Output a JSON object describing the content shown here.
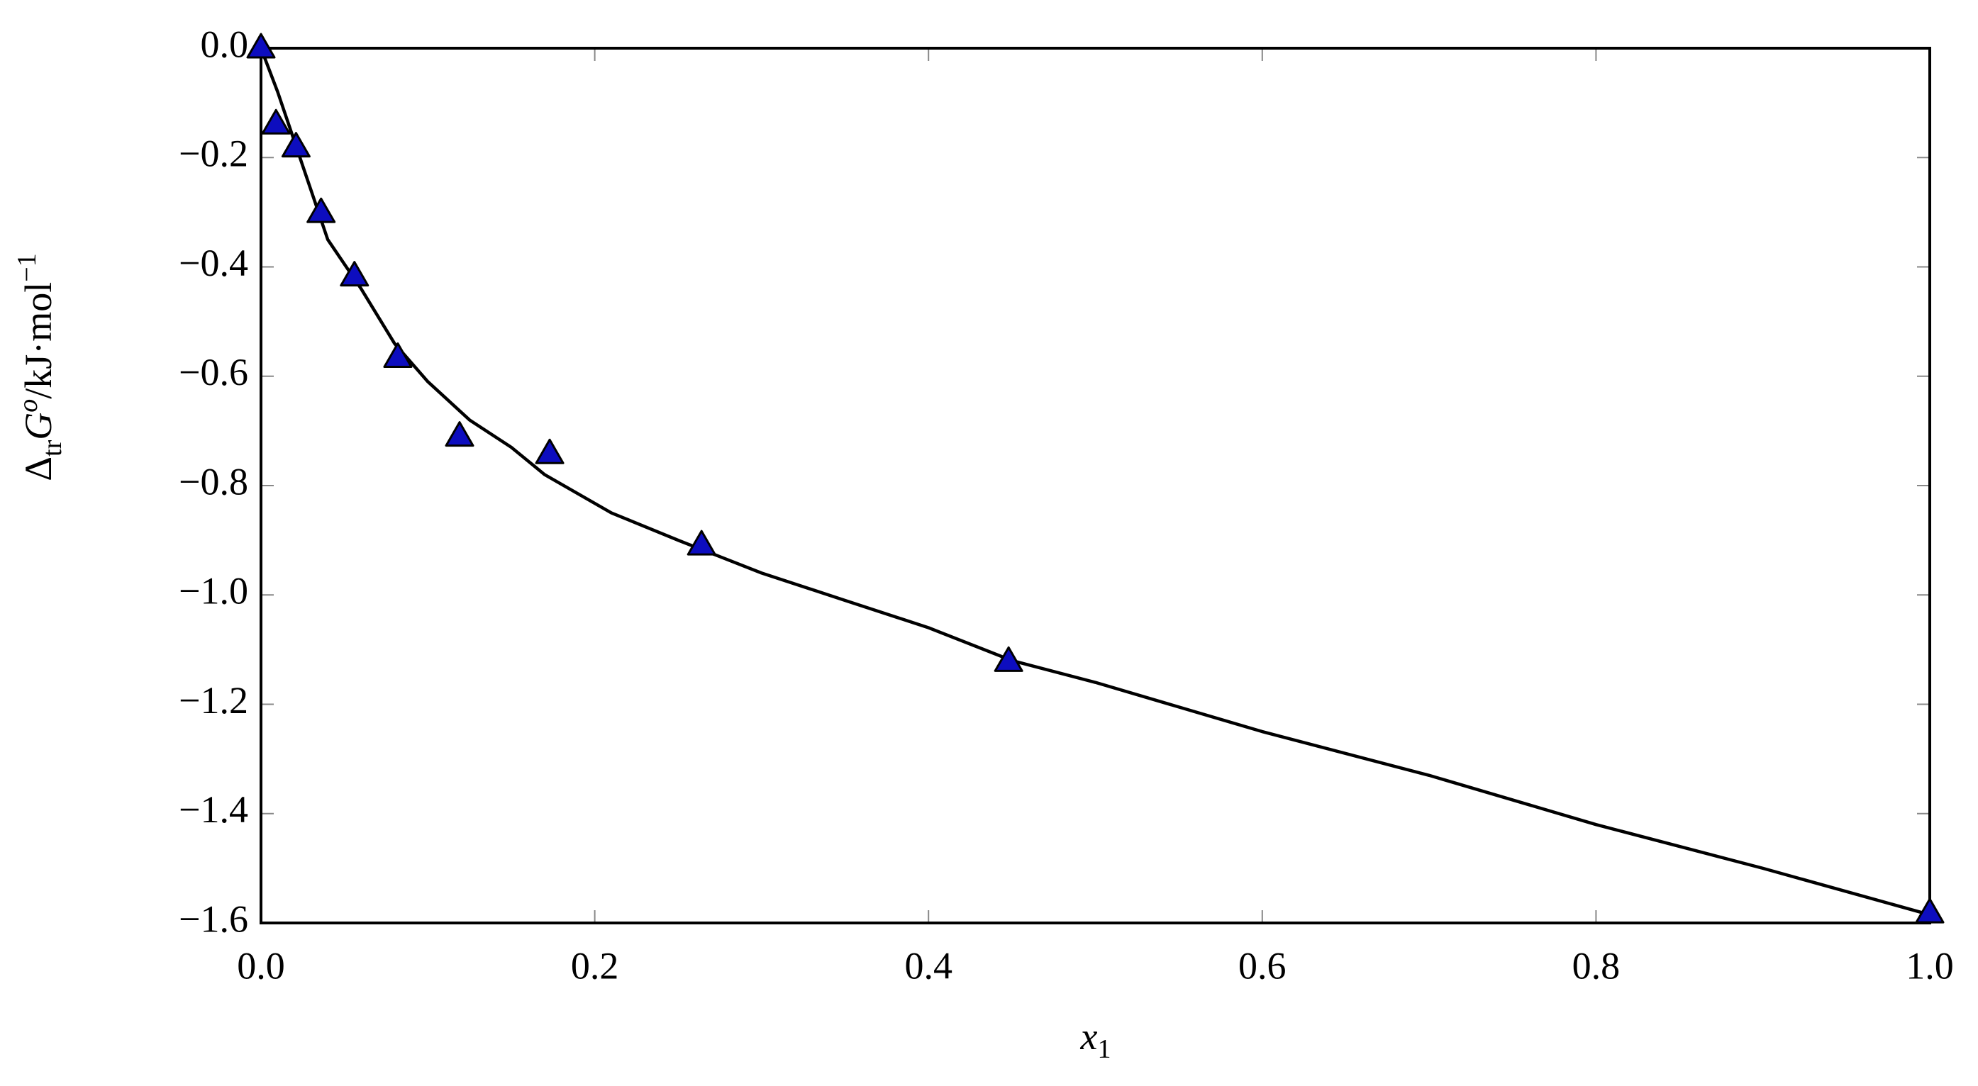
{
  "chart_data": {
    "type": "scatter",
    "x_label": [
      "x",
      "1"
    ],
    "y_label": [
      "Δ",
      "tr",
      "G",
      "o",
      "/kJ·mol",
      "−1"
    ],
    "xlim": [
      0,
      1
    ],
    "ylim": [
      -1.6,
      0
    ],
    "xticks": [
      {
        "value": 0,
        "label": "0.0"
      },
      0.2,
      0.4,
      0.6,
      0.8,
      {
        "value": 1,
        "label": "1.0"
      }
    ],
    "yticks": [
      {
        "value": 0,
        "label": "0.0"
      },
      {
        "value": -0.2,
        "label": "−0.2"
      },
      {
        "value": -0.4,
        "label": "−0.4"
      },
      {
        "value": -0.6,
        "label": "−0.6"
      },
      {
        "value": -0.8,
        "label": "−0.8"
      },
      {
        "value": -1.0,
        "label": "−1.0"
      },
      {
        "value": -1.2,
        "label": "−1.2"
      },
      {
        "value": -1.4,
        "label": "−1.4"
      },
      {
        "value": -1.6,
        "label": "−1.6"
      }
    ],
    "grid": false,
    "series": [
      {
        "color": "#000000",
        "mode": "line",
        "x": [
          0,
          0.01,
          0.02,
          0.03,
          0.04,
          0.06,
          0.08,
          0.1,
          0.125,
          0.15,
          0.17,
          0.21,
          0.25,
          0.3,
          0.35,
          0.4,
          0.45,
          0.5,
          0.6,
          0.7,
          0.8,
          0.9,
          1.0
        ],
        "values": [
          0,
          -0.08,
          -0.17,
          -0.26,
          -0.35,
          -0.44,
          -0.54,
          -0.61,
          -0.68,
          -0.73,
          -0.78,
          -0.85,
          -0.9,
          -0.96,
          -1.01,
          -1.06,
          -1.12,
          -1.16,
          -1.25,
          -1.33,
          -1.42,
          -1.5,
          -1.585
        ]
      },
      {
        "color": "#0d0dbf",
        "mode": "markers",
        "marker": "triangle",
        "x": [
          0,
          0.009,
          0.021,
          0.036,
          0.056,
          0.082,
          0.119,
          0.173,
          0.264,
          0.448,
          1.0
        ],
        "values": [
          0,
          -0.139,
          -0.181,
          -0.301,
          -0.417,
          -0.566,
          -0.71,
          -0.742,
          -0.909,
          -1.122,
          -1.582
        ]
      }
    ]
  }
}
